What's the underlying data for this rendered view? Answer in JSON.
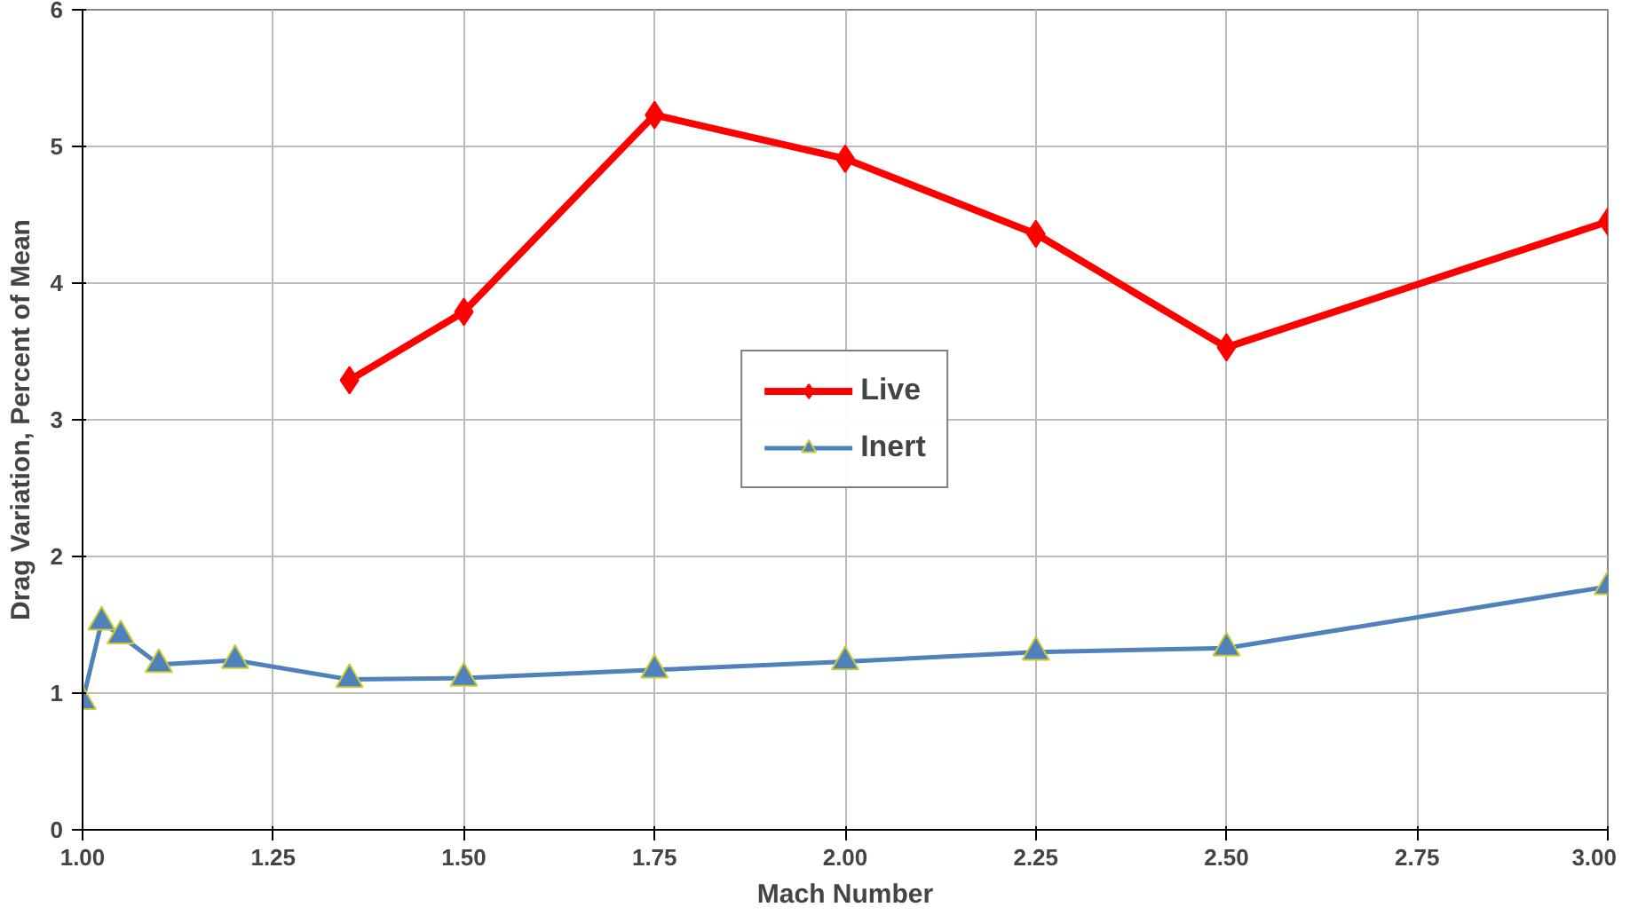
{
  "chart_data": {
    "type": "line",
    "xlabel": "Mach Number",
    "ylabel": "Drag Variation, Percent of Mean",
    "xlim": [
      1.0,
      3.0
    ],
    "ylim": [
      0,
      6
    ],
    "xticks": [
      {
        "value": 1.0,
        "label": "1.00"
      },
      {
        "value": 1.25,
        "label": "1.25"
      },
      {
        "value": 1.5,
        "label": "1.50"
      },
      {
        "value": 1.75,
        "label": "1.75"
      },
      {
        "value": 2.0,
        "label": "2.00"
      },
      {
        "value": 2.25,
        "label": "2.25"
      },
      {
        "value": 2.5,
        "label": "2.50"
      },
      {
        "value": 2.75,
        "label": "2.75"
      },
      {
        "value": 3.0,
        "label": "3.00"
      }
    ],
    "yticks": [
      0,
      1,
      2,
      3,
      4,
      5,
      6
    ],
    "grid": true,
    "legend": "center",
    "line_style": "solid",
    "series": [
      {
        "name": "Live",
        "color": "#ff0000",
        "marker": "diamond",
        "x": [
          1.35,
          1.5,
          1.75,
          2.0,
          2.25,
          2.5,
          3.0
        ],
        "values": [
          3.29,
          3.79,
          5.23,
          4.91,
          4.36,
          3.53,
          4.45
        ]
      },
      {
        "name": "Inert",
        "color": "#4f81bd",
        "marker": "triangle",
        "x": [
          1.0,
          1.025,
          1.05,
          1.1,
          1.2,
          1.35,
          1.5,
          1.75,
          2.0,
          2.25,
          2.5,
          3.0
        ],
        "values": [
          0.94,
          1.52,
          1.42,
          1.21,
          1.24,
          1.1,
          1.11,
          1.17,
          1.23,
          1.3,
          1.33,
          1.78
        ]
      }
    ]
  }
}
